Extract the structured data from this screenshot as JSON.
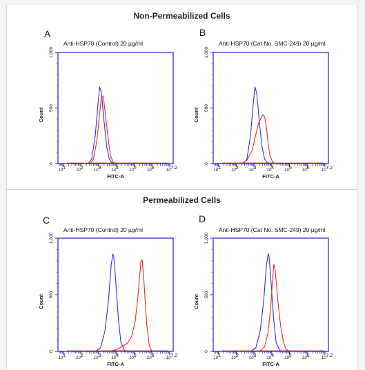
{
  "sections": [
    {
      "title": "Non-Permeabilized Cells"
    },
    {
      "title": "Permeabilized Cells"
    }
  ],
  "colors": {
    "control_curve": "#2c2cd8",
    "sample_curve": "#e82626",
    "axis": "#1a1ad0"
  },
  "chart_data": [
    {
      "type": "line",
      "panel": "A",
      "title": "Anti-HSP70 (Control) 20 µg/ml",
      "xlabel": "FITC-A",
      "ylabel": "Count",
      "xscale": "log",
      "xlim": [
        0.7,
        7.2
      ],
      "ylim": [
        0,
        1000
      ],
      "ytick_labels": [
        "0",
        "500",
        "1,000"
      ],
      "xtick_labels": [
        "10^1",
        "10^2",
        "10^3",
        "10^4",
        "10^5",
        "10^6",
        "10^7.2"
      ],
      "series": [
        {
          "color": "#2c2cd8",
          "x": [
            2.4,
            2.6,
            2.8,
            2.95,
            3.05,
            3.15,
            3.2,
            3.3,
            3.45,
            3.6,
            3.75,
            3.9
          ],
          "y": [
            0,
            40,
            250,
            520,
            690,
            640,
            560,
            380,
            150,
            40,
            8,
            0
          ]
        },
        {
          "color": "#e82626",
          "x": [
            2.5,
            2.7,
            2.9,
            3.05,
            3.15,
            3.25,
            3.35,
            3.5,
            3.65,
            3.8,
            3.95
          ],
          "y": [
            0,
            40,
            210,
            450,
            600,
            610,
            480,
            270,
            80,
            15,
            0
          ]
        }
      ]
    },
    {
      "type": "line",
      "panel": "B",
      "title": "Anti-HSP70 (Cat No. SMC-249) 20 µg/ml",
      "xlabel": "FITC-A",
      "ylabel": "Count",
      "xscale": "log",
      "xlim": [
        0.7,
        7.2
      ],
      "ylim": [
        0,
        1000
      ],
      "ytick_labels": [
        "0",
        "500",
        "1,000"
      ],
      "xtick_labels": [
        "10^1",
        "10^2",
        "10^3",
        "10^4",
        "10^5",
        "10^6",
        "10^7.2"
      ],
      "series": [
        {
          "color": "#2c2cd8",
          "x": [
            2.4,
            2.6,
            2.8,
            2.95,
            3.05,
            3.15,
            3.2,
            3.3,
            3.45,
            3.6,
            3.75,
            3.9
          ],
          "y": [
            0,
            40,
            250,
            520,
            690,
            640,
            560,
            380,
            150,
            40,
            8,
            0
          ]
        },
        {
          "color": "#e82626",
          "x": [
            2.3,
            2.6,
            2.9,
            3.1,
            3.25,
            3.4,
            3.5,
            3.6,
            3.7,
            3.8,
            3.9,
            4.05,
            4.2
          ],
          "y": [
            0,
            30,
            120,
            260,
            360,
            410,
            440,
            420,
            330,
            190,
            70,
            15,
            0
          ]
        }
      ]
    },
    {
      "type": "line",
      "panel": "C",
      "title": "Anti-HSP70 (Control) 20 µg/ml",
      "xlabel": "FITC-A",
      "ylabel": "Count",
      "xscale": "log",
      "xlim": [
        0.7,
        7.2
      ],
      "ylim": [
        0,
        1000
      ],
      "ytick_labels": [
        "0",
        "500",
        "1,000"
      ],
      "xtick_labels": [
        "10^1",
        "10^2",
        "10^3",
        "10^4",
        "10^5",
        "10^6",
        "10^7.2"
      ],
      "series": [
        {
          "color": "#2c2cd8",
          "x": [
            2.8,
            3.1,
            3.35,
            3.55,
            3.7,
            3.8,
            3.85,
            3.95,
            4.1,
            4.25,
            4.45,
            4.6
          ],
          "y": [
            0,
            30,
            180,
            450,
            760,
            860,
            840,
            640,
            300,
            80,
            10,
            0
          ]
        },
        {
          "color": "#e82626",
          "x": [
            3.6,
            4.0,
            4.3,
            4.6,
            4.85,
            5.05,
            5.2,
            5.3,
            5.38,
            5.45,
            5.55,
            5.7,
            5.85,
            6.0
          ],
          "y": [
            0,
            15,
            40,
            70,
            130,
            260,
            460,
            650,
            790,
            810,
            620,
            250,
            50,
            0
          ]
        }
      ]
    },
    {
      "type": "line",
      "panel": "D",
      "title": "Anti-HSP70 (Cat No. SMC-249) 20 µg/ml",
      "xlabel": "FITC-A",
      "ylabel": "Count",
      "xscale": "log",
      "xlim": [
        0.7,
        7.2
      ],
      "ylim": [
        0,
        1000
      ],
      "ytick_labels": [
        "0",
        "500",
        "1,000"
      ],
      "xtick_labels": [
        "10^1",
        "10^2",
        "10^3",
        "10^4",
        "10^5",
        "10^6",
        "10^7.2"
      ],
      "series": [
        {
          "color": "#2c2cd8",
          "x": [
            2.8,
            3.1,
            3.35,
            3.55,
            3.7,
            3.8,
            3.85,
            3.95,
            4.1,
            4.25,
            4.45,
            4.6
          ],
          "y": [
            0,
            30,
            180,
            450,
            760,
            860,
            840,
            640,
            300,
            80,
            10,
            0
          ]
        },
        {
          "color": "#e82626",
          "x": [
            3.3,
            3.6,
            3.8,
            3.95,
            4.05,
            4.12,
            4.18,
            4.25,
            4.35,
            4.5,
            4.65,
            4.8,
            5.0
          ],
          "y": [
            0,
            40,
            170,
            400,
            640,
            770,
            740,
            620,
            440,
            230,
            90,
            20,
            0
          ]
        }
      ]
    }
  ]
}
